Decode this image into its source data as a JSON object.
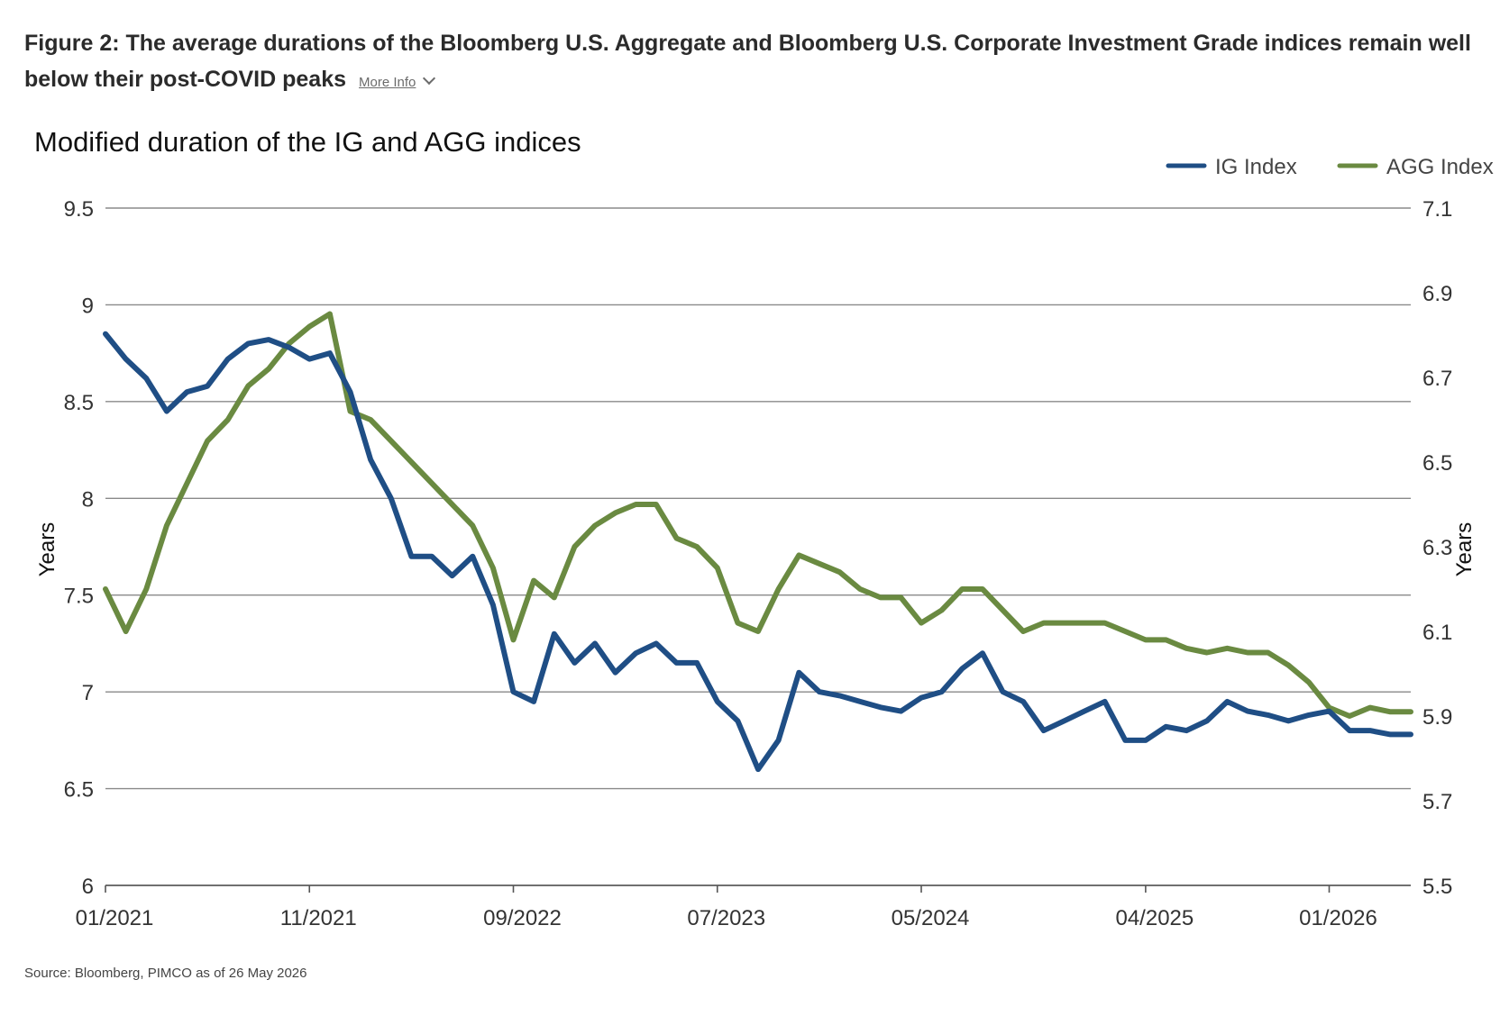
{
  "figure": {
    "title": "Figure 2: The average durations of the Bloomberg U.S. Aggregate and Bloomberg U.S. Corporate Investment Grade indices remain well below their post-COVID peaks",
    "more_info": "More Info",
    "source": "Source: Bloomberg, PIMCO as of 26 May 2026"
  },
  "chart_data": {
    "type": "line",
    "title": "Modified duration of the IG and AGG indices",
    "ylabel": "Years",
    "y2label": "Years",
    "ylim": [
      6,
      9.5
    ],
    "y2lim": [
      5.5,
      7.1
    ],
    "yticks": [
      "6",
      "6.5",
      "7",
      "7.5",
      "8",
      "8.5",
      "9",
      "9.5"
    ],
    "y2ticks": [
      "5.5",
      "5.7",
      "5.9",
      "6.1",
      "6.3",
      "6.5",
      "6.7",
      "6.9",
      "7.1"
    ],
    "xticks": [
      "01/2021",
      "11/2021",
      "09/2022",
      "07/2023",
      "05/2024",
      "04/2025",
      "01/2026"
    ],
    "xlim": [
      "2021-01",
      "2026-05"
    ],
    "grid": true,
    "legend_position": "top-right",
    "x": [
      "2021-01",
      "2021-02",
      "2021-03",
      "2021-04",
      "2021-05",
      "2021-06",
      "2021-07",
      "2021-08",
      "2021-09",
      "2021-10",
      "2021-11",
      "2021-12",
      "2022-01",
      "2022-02",
      "2022-03",
      "2022-04",
      "2022-05",
      "2022-06",
      "2022-07",
      "2022-08",
      "2022-09",
      "2022-10",
      "2022-11",
      "2022-12",
      "2023-01",
      "2023-02",
      "2023-03",
      "2023-04",
      "2023-05",
      "2023-06",
      "2023-07",
      "2023-08",
      "2023-09",
      "2023-10",
      "2023-11",
      "2023-12",
      "2024-01",
      "2024-02",
      "2024-03",
      "2024-04",
      "2024-05",
      "2024-06",
      "2024-07",
      "2024-08",
      "2024-09",
      "2024-10",
      "2024-11",
      "2024-12",
      "2025-01",
      "2025-02",
      "2025-03",
      "2025-04",
      "2025-05",
      "2025-06",
      "2025-07",
      "2025-08",
      "2025-09",
      "2025-10",
      "2025-11",
      "2025-12",
      "2026-01",
      "2026-02",
      "2026-03",
      "2026-04",
      "2026-05"
    ],
    "series": [
      {
        "name": "IG Index",
        "axis": "left",
        "color": "#1f4e85",
        "values": [
          8.85,
          8.72,
          8.62,
          8.45,
          8.55,
          8.58,
          8.72,
          8.8,
          8.82,
          8.78,
          8.72,
          8.75,
          8.55,
          8.2,
          8.0,
          7.7,
          7.7,
          7.6,
          7.7,
          7.45,
          7.0,
          6.95,
          7.3,
          7.15,
          7.25,
          7.1,
          7.2,
          7.25,
          7.15,
          7.15,
          6.95,
          6.85,
          6.6,
          6.75,
          7.1,
          7.0,
          6.98,
          6.95,
          6.92,
          6.9,
          6.97,
          7.0,
          7.12,
          7.2,
          7.0,
          6.95,
          6.8,
          6.85,
          6.9,
          6.95,
          6.75,
          6.75,
          6.82,
          6.8,
          6.85,
          6.95,
          6.9,
          6.88,
          6.85,
          6.88,
          6.9,
          6.8,
          6.8,
          6.78,
          6.78
        ]
      },
      {
        "name": "AGG Index",
        "axis": "right",
        "color": "#6a8a41",
        "values": [
          6.2,
          6.1,
          6.2,
          6.35,
          6.45,
          6.55,
          6.6,
          6.68,
          6.72,
          6.78,
          6.82,
          6.85,
          6.62,
          6.6,
          6.55,
          6.5,
          6.45,
          6.4,
          6.35,
          6.25,
          6.08,
          6.22,
          6.18,
          6.3,
          6.35,
          6.38,
          6.4,
          6.4,
          6.32,
          6.3,
          6.25,
          6.12,
          6.1,
          6.2,
          6.28,
          6.26,
          6.24,
          6.2,
          6.18,
          6.18,
          6.12,
          6.15,
          6.2,
          6.2,
          6.15,
          6.1,
          6.12,
          6.12,
          6.12,
          6.12,
          6.1,
          6.08,
          6.08,
          6.06,
          6.05,
          6.06,
          6.05,
          6.05,
          6.02,
          5.98,
          5.92,
          5.9,
          5.92,
          5.91,
          5.91
        ]
      }
    ]
  }
}
